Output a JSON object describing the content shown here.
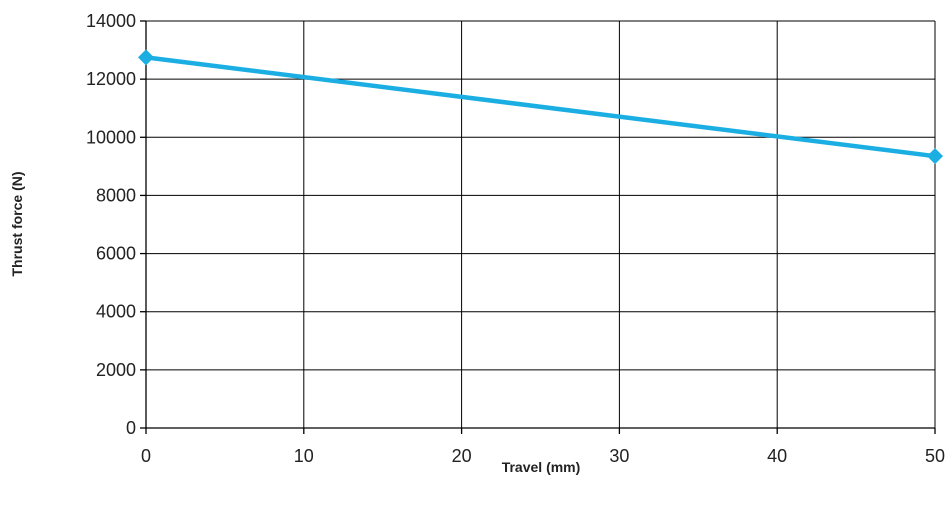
{
  "chart_data": {
    "type": "line",
    "title": "",
    "xlabel": "Travel (mm)",
    "ylabel": "Thrust force (N)",
    "xlim": [
      0,
      50
    ],
    "ylim": [
      0,
      14000
    ],
    "xticks": [
      0,
      10,
      20,
      30,
      40,
      50
    ],
    "yticks": [
      0,
      2000,
      4000,
      6000,
      8000,
      10000,
      12000,
      14000
    ],
    "xtick_labels": [
      "0",
      "10",
      "20",
      "30",
      "40",
      "50"
    ],
    "ytick_labels": [
      "0",
      "2000",
      "4000",
      "6000",
      "8000",
      "10000",
      "12000",
      "14000"
    ],
    "grid": true,
    "legend": "none",
    "series": [
      {
        "color": "#1aaee3",
        "marker": "diamond",
        "x": [
          0,
          50
        ],
        "y": [
          12750,
          9350
        ]
      }
    ]
  }
}
